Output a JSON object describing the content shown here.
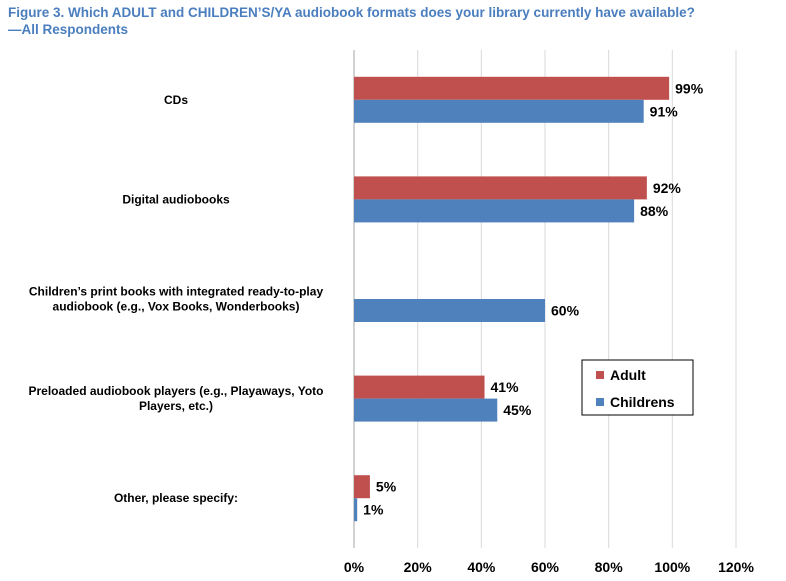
{
  "title_line1": "Figure 3. Which ADULT and CHILDREN’S/YA audiobook formats does your library currently have available?",
  "title_line2": "—All Respondents",
  "chart_data": {
    "type": "bar",
    "orientation": "horizontal",
    "categories": [
      [
        "CDs"
      ],
      [
        "Digital audiobooks"
      ],
      [
        "Children’s print books with integrated ready-to-play",
        "audiobook (e.g., Vox Books, Wonderbooks)"
      ],
      [
        "Preloaded audiobook players (e.g., Playaways, Yoto",
        "Players, etc.)"
      ],
      [
        "Other, please specify:"
      ]
    ],
    "series": [
      {
        "name": "Adult",
        "color": "#c0504d",
        "values": [
          99,
          92,
          null,
          41,
          5
        ]
      },
      {
        "name": "Childrens",
        "color": "#4f81bd",
        "values": [
          91,
          88,
          60,
          45,
          1
        ]
      }
    ],
    "xlim": [
      0,
      120
    ],
    "xticks": [
      "0%",
      "20%",
      "40%",
      "60%",
      "80%",
      "100%",
      "120%"
    ],
    "value_suffix": "%",
    "grid": "vertical",
    "legend_position": "right"
  }
}
